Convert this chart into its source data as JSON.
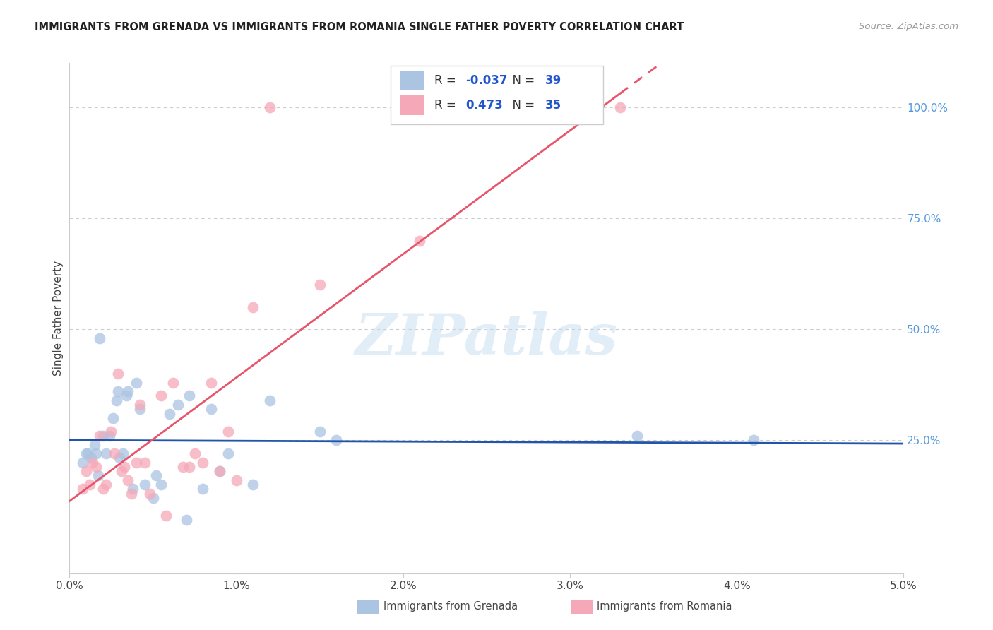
{
  "title": "IMMIGRANTS FROM GRENADA VS IMMIGRANTS FROM ROMANIA SINGLE FATHER POVERTY CORRELATION CHART",
  "source": "Source: ZipAtlas.com",
  "ylabel": "Single Father Poverty",
  "right_yticks": [
    "100.0%",
    "75.0%",
    "50.0%",
    "25.0%"
  ],
  "right_ytick_vals": [
    1.0,
    0.75,
    0.5,
    0.25
  ],
  "xlim": [
    0.0,
    0.05
  ],
  "ylim": [
    -0.05,
    1.1
  ],
  "grenada_R": -0.037,
  "grenada_N": 39,
  "romania_R": 0.473,
  "romania_N": 35,
  "grenada_color": "#aac4e2",
  "romania_color": "#f5a8b8",
  "grenada_line_color": "#2255aa",
  "romania_line_color": "#e8546a",
  "grenada_x": [
    0.0008,
    0.001,
    0.0011,
    0.0013,
    0.0015,
    0.0016,
    0.0017,
    0.0018,
    0.002,
    0.0022,
    0.0024,
    0.0026,
    0.0028,
    0.0029,
    0.003,
    0.0032,
    0.0034,
    0.0035,
    0.0038,
    0.004,
    0.0042,
    0.0045,
    0.005,
    0.0052,
    0.0055,
    0.006,
    0.0065,
    0.007,
    0.0072,
    0.008,
    0.0085,
    0.009,
    0.0095,
    0.011,
    0.012,
    0.015,
    0.016,
    0.034,
    0.041
  ],
  "grenada_y": [
    0.2,
    0.22,
    0.22,
    0.21,
    0.24,
    0.22,
    0.17,
    0.48,
    0.26,
    0.22,
    0.26,
    0.3,
    0.34,
    0.36,
    0.21,
    0.22,
    0.35,
    0.36,
    0.14,
    0.38,
    0.32,
    0.15,
    0.12,
    0.17,
    0.15,
    0.31,
    0.33,
    0.07,
    0.35,
    0.14,
    0.32,
    0.18,
    0.22,
    0.15,
    0.34,
    0.27,
    0.25,
    0.26,
    0.25
  ],
  "romania_x": [
    0.0008,
    0.001,
    0.0012,
    0.0014,
    0.0016,
    0.0018,
    0.002,
    0.0022,
    0.0025,
    0.0027,
    0.0029,
    0.0031,
    0.0033,
    0.0035,
    0.0037,
    0.004,
    0.0042,
    0.0045,
    0.0048,
    0.0055,
    0.0058,
    0.0062,
    0.0068,
    0.0072,
    0.0075,
    0.008,
    0.0085,
    0.009,
    0.0095,
    0.01,
    0.011,
    0.012,
    0.015,
    0.021,
    0.033
  ],
  "romania_y": [
    0.14,
    0.18,
    0.15,
    0.2,
    0.19,
    0.26,
    0.14,
    0.15,
    0.27,
    0.22,
    0.4,
    0.18,
    0.19,
    0.16,
    0.13,
    0.2,
    0.33,
    0.2,
    0.13,
    0.35,
    0.08,
    0.38,
    0.19,
    0.19,
    0.22,
    0.2,
    0.38,
    0.18,
    0.27,
    0.16,
    0.55,
    1.0,
    0.6,
    0.7,
    1.0
  ],
  "watermark": "ZIPatlas",
  "legend_label1": "Immigrants from Grenada",
  "legend_label2": "Immigrants from Romania",
  "grid_color": "#cccccc",
  "background_color": "#ffffff",
  "xtick_labels": [
    "0.0%",
    "1.0%",
    "2.0%",
    "3.0%",
    "4.0%",
    "5.0%"
  ],
  "xtick_vals": [
    0.0,
    0.01,
    0.02,
    0.03,
    0.04,
    0.05
  ]
}
